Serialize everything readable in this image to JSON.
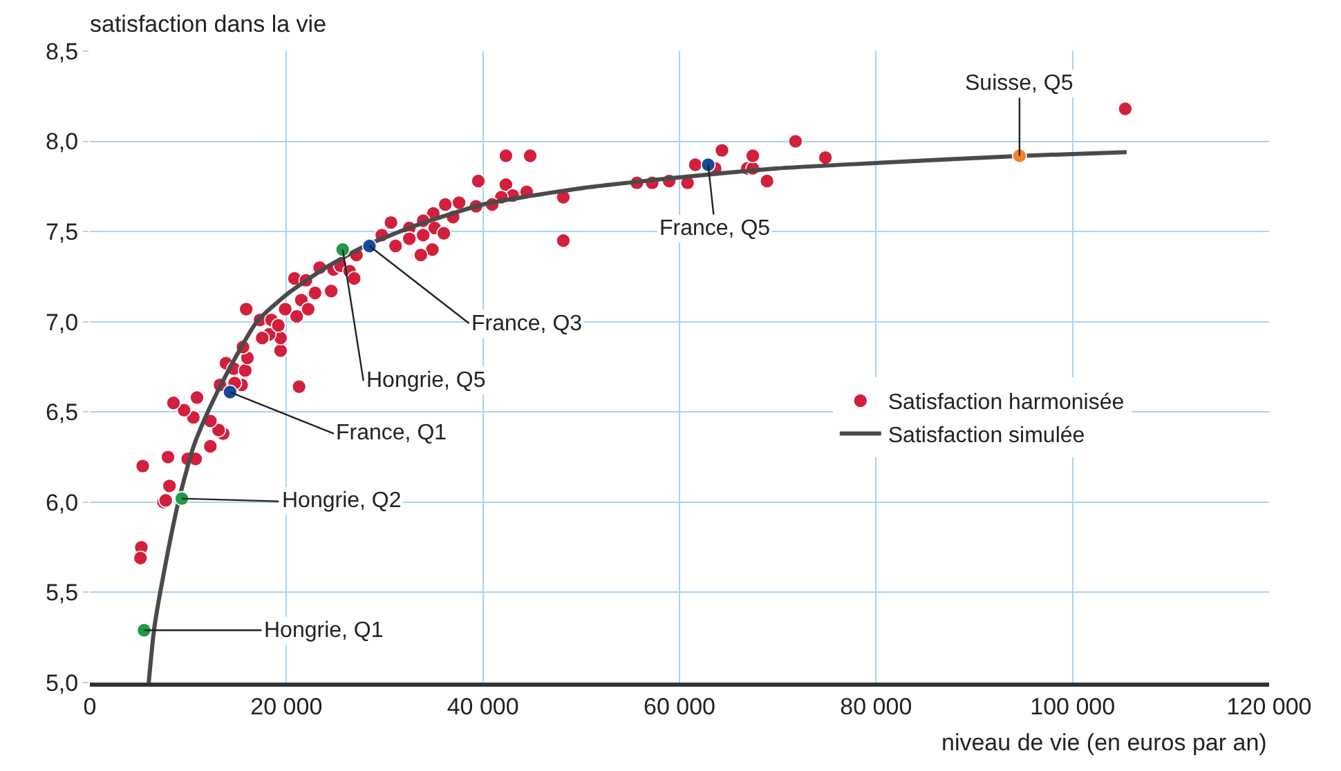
{
  "chart_data": {
    "type": "scatter",
    "xlabel": "niveau de vie (en euros par an)",
    "ylabel": "satisfaction dans la vie",
    "xlim": [
      0,
      120000
    ],
    "ylim": [
      5.0,
      8.5
    ],
    "xticks": [
      0,
      {
        "value": 20000,
        "label": "20 000"
      },
      {
        "value": 40000,
        "label": "40 000"
      },
      {
        "value": 60000,
        "label": "60 000"
      },
      {
        "value": 80000,
        "label": "80 000"
      },
      {
        "value": 100000,
        "label": "100 000"
      },
      {
        "value": 120000,
        "label": "120 000"
      }
    ],
    "yticks": [
      {
        "value": 5.0,
        "label": "5,0"
      },
      {
        "value": 5.5,
        "label": "5,5"
      },
      {
        "value": 6.0,
        "label": "6,0"
      },
      {
        "value": 6.5,
        "label": "6,5"
      },
      {
        "value": 7.0,
        "label": "7,0"
      },
      {
        "value": 7.5,
        "label": "7,5"
      },
      {
        "value": 8.0,
        "label": "8,0"
      },
      {
        "value": 8.5,
        "label": "8,5"
      }
    ],
    "grid": true,
    "legend": "right",
    "marker": "circle",
    "series": [
      {
        "name": "Satisfaction harmonisée",
        "color": "#d21f3c",
        "x": [
          5240,
          5150,
          5380,
          7490,
          7720,
          8100,
          7950,
          9960,
          10760,
          12260,
          13570,
          13100,
          12260,
          10530,
          9590,
          8510,
          10900,
          13240,
          15440,
          14740,
          13850,
          14640,
          15810,
          16040,
          15580,
          21290,
          19410,
          19410,
          18250,
          17540,
          17310,
          18480,
          19180,
          15910,
          19880,
          21050,
          21520,
          22220,
          22920,
          20820,
          21990,
          23390,
          24800,
          25500,
          24560,
          26430,
          26900,
          27130,
          42340,
          44810,
          39530,
          42340,
          44450,
          43040,
          41870,
          40940,
          39300,
          37570,
          36170,
          34950,
          36960,
          48180,
          48180,
          33920,
          32510,
          30640,
          35090,
          36020,
          33920,
          32510,
          31110,
          34850,
          33680,
          29710,
          55670,
          57220,
          58950,
          60820,
          61610,
          63630,
          64320,
          66900,
          67460,
          67460,
          68910,
          71810,
          74850,
          105360
        ],
        "values": [
          5.75,
          5.69,
          6.2,
          6.0,
          6.01,
          6.09,
          6.25,
          6.24,
          6.24,
          6.31,
          6.38,
          6.4,
          6.45,
          6.47,
          6.51,
          6.55,
          6.58,
          6.65,
          6.65,
          6.66,
          6.77,
          6.74,
          6.73,
          6.8,
          6.86,
          6.64,
          6.84,
          6.91,
          6.93,
          6.91,
          7.01,
          7.01,
          6.98,
          7.07,
          7.07,
          7.03,
          7.12,
          7.07,
          7.16,
          7.24,
          7.23,
          7.3,
          7.29,
          7.31,
          7.17,
          7.28,
          7.24,
          7.37,
          7.92,
          7.92,
          7.78,
          7.76,
          7.72,
          7.7,
          7.69,
          7.65,
          7.64,
          7.66,
          7.65,
          7.6,
          7.58,
          7.69,
          7.45,
          7.56,
          7.52,
          7.55,
          7.52,
          7.49,
          7.48,
          7.46,
          7.42,
          7.4,
          7.37,
          7.48,
          7.77,
          7.77,
          7.78,
          7.77,
          7.87,
          7.85,
          7.95,
          7.85,
          7.85,
          7.92,
          7.78,
          8.0,
          7.91,
          8.18
        ]
      },
      {
        "name": "Satisfaction simulée",
        "type": "line",
        "color": "#4a4a4a",
        "marker": "none",
        "x": [
          5990,
          6550,
          7500,
          9000,
          10500,
          12000,
          14000,
          17000,
          20000,
          24000,
          28000,
          33000,
          40000,
          50000,
          60000,
          70000,
          80000,
          95000,
          105500
        ],
        "values": [
          5.0,
          5.3,
          5.6,
          6.0,
          6.3,
          6.5,
          6.72,
          7.0,
          7.15,
          7.3,
          7.42,
          7.53,
          7.65,
          7.74,
          7.8,
          7.85,
          7.88,
          7.92,
          7.94
        ]
      },
      {
        "x": [
          5520,
          9360,
          25730,
          14270,
          28450,
          62920,
          94600
        ],
        "values": [
          5.29,
          6.02,
          7.4,
          6.61,
          7.42,
          7.87,
          7.92
        ],
        "colors": [
          "#1e9a4a",
          "#1e9a4a",
          "#1e9a4a",
          "#174a9c",
          "#174a9c",
          "#174a9c",
          "#f0822a"
        ]
      }
    ],
    "annotations": [
      {
        "text": "Hongrie, Q1",
        "x": 5520,
        "y": 5.29
      },
      {
        "text": "Hongrie, Q2",
        "x": 9360,
        "y": 6.02
      },
      {
        "text": "France, Q1",
        "x": 14270,
        "y": 6.61
      },
      {
        "text": "Hongrie, Q5",
        "x": 25730,
        "y": 7.4
      },
      {
        "text": "France, Q3",
        "x": 28450,
        "y": 7.42
      },
      {
        "text": "France, Q5",
        "x": 62920,
        "y": 7.87
      },
      {
        "text": "Suisse, Q5",
        "x": 94600,
        "y": 7.92
      }
    ]
  }
}
